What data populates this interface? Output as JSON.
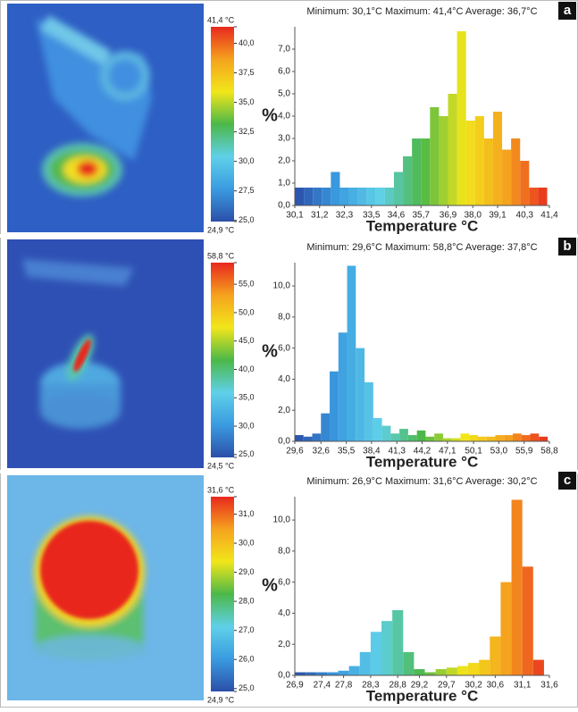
{
  "chart_data": [
    {
      "type": "histogram",
      "label": "a",
      "title": "Minimum: 30,1°C Maximum: 41,4°C Average: 36,7°C",
      "xlabel": "Temperature °C",
      "ylabel": "%",
      "colors": [
        "#2b4fa8",
        "#3a9be0",
        "#5fd0e8",
        "#4cb848",
        "#f2e61a",
        "#f5a21e",
        "#e8281e"
      ],
      "bins": [
        30.1,
        30.5,
        30.9,
        31.3,
        31.7,
        32.1,
        32.5,
        32.9,
        33.3,
        33.7,
        34.1,
        34.5,
        34.9,
        35.3,
        35.7,
        36.1,
        36.5,
        36.9,
        37.3,
        37.7,
        38.1,
        38.5,
        38.9,
        39.3,
        39.7,
        40.1,
        40.5,
        40.9,
        41.3
      ],
      "values": [
        0.8,
        0.8,
        0.8,
        0.8,
        1.5,
        0.8,
        0.8,
        0.8,
        0.8,
        0.8,
        0.8,
        1.5,
        2.2,
        3.0,
        3.0,
        4.4,
        4.0,
        5.0,
        7.8,
        3.8,
        4.0,
        3.0,
        4.2,
        2.5,
        3.0,
        2.0,
        0.8,
        0.8
      ],
      "xlim": [
        30.1,
        41.4
      ],
      "ylim": [
        0,
        8
      ],
      "xticks": [
        {
          "value": 30.1,
          "label": "30,1"
        },
        {
          "value": 31.2,
          "label": "31,2"
        },
        {
          "value": 32.3,
          "label": "32,3"
        },
        {
          "value": 33.5,
          "label": "33,5"
        },
        {
          "value": 34.6,
          "label": "34,6"
        },
        {
          "value": 35.7,
          "label": "35,7"
        },
        {
          "value": 36.9,
          "label": "36,9"
        },
        {
          "value": 38.0,
          "label": "38,0"
        },
        {
          "value": 39.1,
          "label": "39,1"
        },
        {
          "value": 40.3,
          "label": "40,3"
        },
        {
          "value": 41.4,
          "label": "41,4"
        }
      ],
      "yticks": [
        {
          "value": 0,
          "label": "0,0"
        },
        {
          "value": 1,
          "label": "1,0"
        },
        {
          "value": 2,
          "label": "2,0"
        },
        {
          "value": 3,
          "label": "3,0"
        },
        {
          "value": 4,
          "label": "4,0"
        },
        {
          "value": 5,
          "label": "5,0"
        },
        {
          "value": 6,
          "label": "6,0"
        },
        {
          "value": 7,
          "label": "7,0"
        }
      ],
      "colorbar": {
        "lim": [
          24.9,
          41.4
        ],
        "ticks": [
          {
            "value": 41.4,
            "label": "41,4 °C"
          },
          {
            "value": 40.0,
            "label": "40,0"
          },
          {
            "value": 37.5,
            "label": "37,5"
          },
          {
            "value": 35.0,
            "label": "35,0"
          },
          {
            "value": 32.5,
            "label": "32,5"
          },
          {
            "value": 30.0,
            "label": "30,0"
          },
          {
            "value": 27.5,
            "label": "27,5"
          },
          {
            "value": 25.0,
            "label": "25,0"
          },
          {
            "value": 24.9,
            "label": "24,9 °C"
          }
        ]
      }
    },
    {
      "type": "histogram",
      "label": "b",
      "title": "Minimum: 29,6°C  Maximum: 58,8°C   Average: 37,8°C",
      "xlabel": "Temperature °C",
      "ylabel": "%",
      "colors": [
        "#2b4fa8",
        "#3a9be0",
        "#5fd0e8",
        "#4cb848",
        "#f2e61a",
        "#f5a21e",
        "#e8281e"
      ],
      "bins": [
        29.6,
        30.6,
        31.6,
        32.6,
        33.6,
        34.6,
        35.6,
        36.6,
        37.6,
        38.6,
        39.6,
        40.6,
        41.6,
        42.6,
        43.6,
        44.6,
        45.6,
        46.6,
        47.6,
        48.6,
        49.6,
        50.6,
        51.6,
        52.6,
        53.6,
        54.6,
        55.6,
        56.6,
        57.6,
        58.6
      ],
      "values": [
        0.4,
        0.3,
        0.5,
        1.8,
        4.5,
        7.0,
        11.3,
        6.0,
        3.8,
        1.5,
        1.0,
        0.5,
        0.8,
        0.4,
        0.7,
        0.3,
        0.5,
        0.2,
        0.2,
        0.5,
        0.4,
        0.3,
        0.3,
        0.4,
        0.4,
        0.5,
        0.4,
        0.5,
        0.3
      ],
      "xlim": [
        29.6,
        58.8
      ],
      "ylim": [
        0,
        11.5
      ],
      "xticks": [
        {
          "value": 29.6,
          "label": "29,6"
        },
        {
          "value": 32.6,
          "label": "32,6"
        },
        {
          "value": 35.5,
          "label": "35,5"
        },
        {
          "value": 38.4,
          "label": "38,4"
        },
        {
          "value": 41.3,
          "label": "41,3"
        },
        {
          "value": 44.2,
          "label": "44,2"
        },
        {
          "value": 47.1,
          "label": "47,1"
        },
        {
          "value": 50.1,
          "label": "50,1"
        },
        {
          "value": 53.0,
          "label": "53,0"
        },
        {
          "value": 55.9,
          "label": "55,9"
        },
        {
          "value": 58.8,
          "label": "58,8"
        }
      ],
      "yticks": [
        {
          "value": 0,
          "label": "0,0"
        },
        {
          "value": 2,
          "label": "2,0"
        },
        {
          "value": 4,
          "label": "4,0"
        },
        {
          "value": 6,
          "label": "6,0"
        },
        {
          "value": 8,
          "label": "8,0"
        },
        {
          "value": 10,
          "label": "10,0"
        }
      ],
      "colorbar": {
        "lim": [
          24.5,
          58.8
        ],
        "ticks": [
          {
            "value": 58.8,
            "label": "58,8 °C"
          },
          {
            "value": 55.0,
            "label": "55,0"
          },
          {
            "value": 50.0,
            "label": "50,0"
          },
          {
            "value": 45.0,
            "label": "45,0"
          },
          {
            "value": 40.0,
            "label": "40,0"
          },
          {
            "value": 35.0,
            "label": "35,0"
          },
          {
            "value": 30.0,
            "label": "30,0"
          },
          {
            "value": 25.0,
            "label": "25,0"
          },
          {
            "value": 24.5,
            "label": "24,5 °C"
          }
        ]
      }
    },
    {
      "type": "histogram",
      "label": "c",
      "title": "Minimum: 26,9°C Maximum: 31,6°C  Average: 30,2°C",
      "xlabel": "Temperature °C",
      "ylabel": "%",
      "colors": [
        "#2b4fa8",
        "#3a9be0",
        "#5fd0e8",
        "#4cb848",
        "#f2e61a",
        "#f5a21e",
        "#e8281e"
      ],
      "bins": [
        26.9,
        27.1,
        27.3,
        27.5,
        27.7,
        27.9,
        28.1,
        28.3,
        28.5,
        28.7,
        28.9,
        29.1,
        29.3,
        29.5,
        29.7,
        29.9,
        30.1,
        30.3,
        30.5,
        30.7,
        30.9,
        31.1,
        31.3,
        31.5
      ],
      "values": [
        0.2,
        0.2,
        0.2,
        0.2,
        0.3,
        0.6,
        1.5,
        2.8,
        3.5,
        4.2,
        1.5,
        0.4,
        0.2,
        0.4,
        0.5,
        0.6,
        0.8,
        1.0,
        2.5,
        6.0,
        11.3,
        7.0,
        1.0
      ],
      "xlim": [
        26.9,
        31.6
      ],
      "ylim": [
        0,
        11.5
      ],
      "xticks": [
        {
          "value": 26.9,
          "label": "26,9"
        },
        {
          "value": 27.4,
          "label": "27,4"
        },
        {
          "value": 27.8,
          "label": "27,8"
        },
        {
          "value": 28.3,
          "label": "28,3"
        },
        {
          "value": 28.8,
          "label": "28,8"
        },
        {
          "value": 29.2,
          "label": "29,2"
        },
        {
          "value": 29.7,
          "label": "29,7"
        },
        {
          "value": 30.2,
          "label": "30,2"
        },
        {
          "value": 30.6,
          "label": "30,6"
        },
        {
          "value": 31.1,
          "label": "31,1"
        },
        {
          "value": 31.6,
          "label": "31,6"
        }
      ],
      "yticks": [
        {
          "value": 0,
          "label": "0,0"
        },
        {
          "value": 2,
          "label": "2,0"
        },
        {
          "value": 4,
          "label": "4,0"
        },
        {
          "value": 6,
          "label": "6,0"
        },
        {
          "value": 8,
          "label": "8,0"
        },
        {
          "value": 10,
          "label": "10,0"
        }
      ],
      "colorbar": {
        "lim": [
          24.9,
          31.6
        ],
        "ticks": [
          {
            "value": 31.6,
            "label": "31,6 °C"
          },
          {
            "value": 31.0,
            "label": "31,0"
          },
          {
            "value": 30.0,
            "label": "30,0"
          },
          {
            "value": 29.0,
            "label": "29,0"
          },
          {
            "value": 28.0,
            "label": "28,0"
          },
          {
            "value": 27.0,
            "label": "27,0"
          },
          {
            "value": 26.0,
            "label": "26,0"
          },
          {
            "value": 25.0,
            "label": "25,0"
          },
          {
            "value": 24.9,
            "label": "24,9 °C"
          }
        ]
      }
    }
  ]
}
